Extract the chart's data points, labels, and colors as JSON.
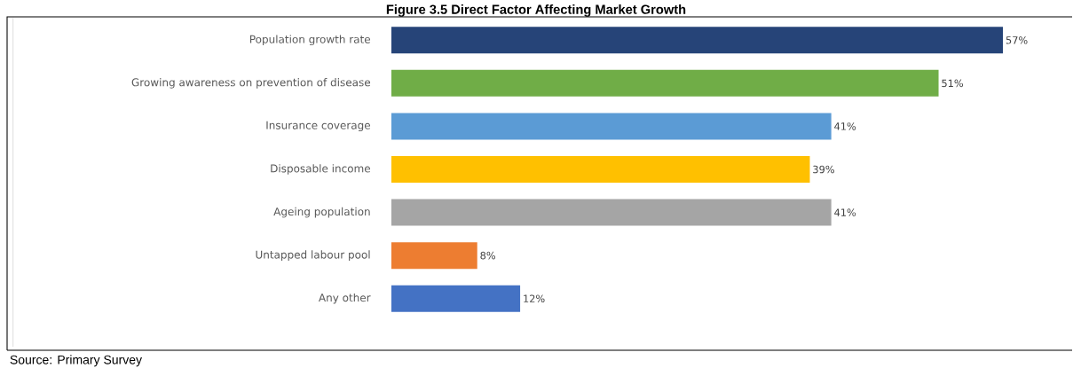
{
  "chart_data": {
    "type": "bar",
    "orientation": "horizontal",
    "title": "Figure 3.5 Direct Factor Affecting Market Growth",
    "categories": [
      "Population growth rate",
      "Growing awareness on prevention of disease",
      "Insurance coverage",
      "Disposable income",
      "Ageing population",
      "Untapped labour pool",
      "Any other"
    ],
    "values": [
      57,
      51,
      41,
      39,
      41,
      8,
      12
    ],
    "value_labels": [
      "57%",
      "51%",
      "41%",
      "39%",
      "41%",
      "8%",
      "12%"
    ],
    "colors": [
      "#264478",
      "#70ad47",
      "#5b9bd5",
      "#ffc000",
      "#a5a5a5",
      "#ed7d31",
      "#4472c4"
    ],
    "annotations": [
      "Source: Primary Survey"
    ]
  }
}
